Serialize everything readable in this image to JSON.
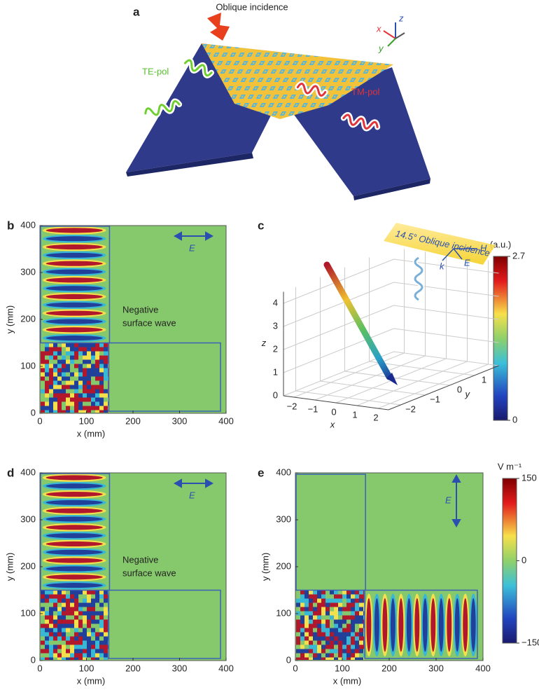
{
  "panel_a": {
    "label": "a",
    "title": "Oblique incidence",
    "te_label": "TE-pol",
    "tm_label": "TM-pol",
    "axes": {
      "x": "x",
      "y": "y",
      "z": "z"
    }
  },
  "panel_b": {
    "label": "b",
    "xlabel": "x (mm)",
    "ylabel": "y (mm)",
    "xlim": [
      0,
      400
    ],
    "ylim": [
      0,
      400
    ],
    "xticks": [
      0,
      100,
      200,
      300,
      400
    ],
    "yticks": [
      0,
      100,
      200,
      300,
      400
    ],
    "annotation": [
      "Negative",
      "surface wave"
    ],
    "field": "E"
  },
  "panel_c": {
    "label": "c",
    "incidence": "14.5° Oblique incidence",
    "vectors": {
      "H": "H",
      "E": "E",
      "k": "k"
    },
    "xlabel": "x",
    "ylabel": "y",
    "zlabel": "z",
    "xlim": [
      -2.5,
      2.5
    ],
    "ylim": [
      -2.5,
      2
    ],
    "zlim": [
      0,
      4.5
    ],
    "xticks": [
      {
        "value": -2,
        "label": "−2"
      },
      {
        "value": -1,
        "label": "−1"
      },
      0,
      1,
      2
    ],
    "yticks": [
      {
        "value": -2,
        "label": "−2"
      },
      {
        "value": -1,
        "label": "−1"
      },
      0,
      1
    ],
    "zticks": [
      0,
      1,
      2,
      3,
      4
    ],
    "colorbar": {
      "title": "(a.u.)",
      "lim": [
        0,
        2.7
      ],
      "ticks": [
        0,
        2.7
      ]
    }
  },
  "panel_d": {
    "label": "d",
    "xlabel": "x (mm)",
    "ylabel": "y (mm)",
    "xlim": [
      0,
      400
    ],
    "ylim": [
      0,
      400
    ],
    "xticks": [
      0,
      100,
      200,
      300,
      400
    ],
    "yticks": [
      0,
      100,
      200,
      300,
      400
    ],
    "annotation": [
      "Negative",
      "surface wave"
    ],
    "field": "E"
  },
  "panel_e": {
    "label": "e",
    "xlabel": "x (mm)",
    "ylabel": "y (mm)",
    "xlim": [
      0,
      400
    ],
    "ylim": [
      0,
      400
    ],
    "xticks": [
      0,
      100,
      200,
      300,
      400
    ],
    "yticks": [
      0,
      100,
      200,
      300,
      400
    ],
    "field": "E",
    "colorbar": {
      "title": "V m⁻¹",
      "lim": [
        -150,
        150
      ],
      "ticks": [
        {
          "value": -150,
          "label": "−150"
        },
        0,
        150
      ]
    }
  }
}
